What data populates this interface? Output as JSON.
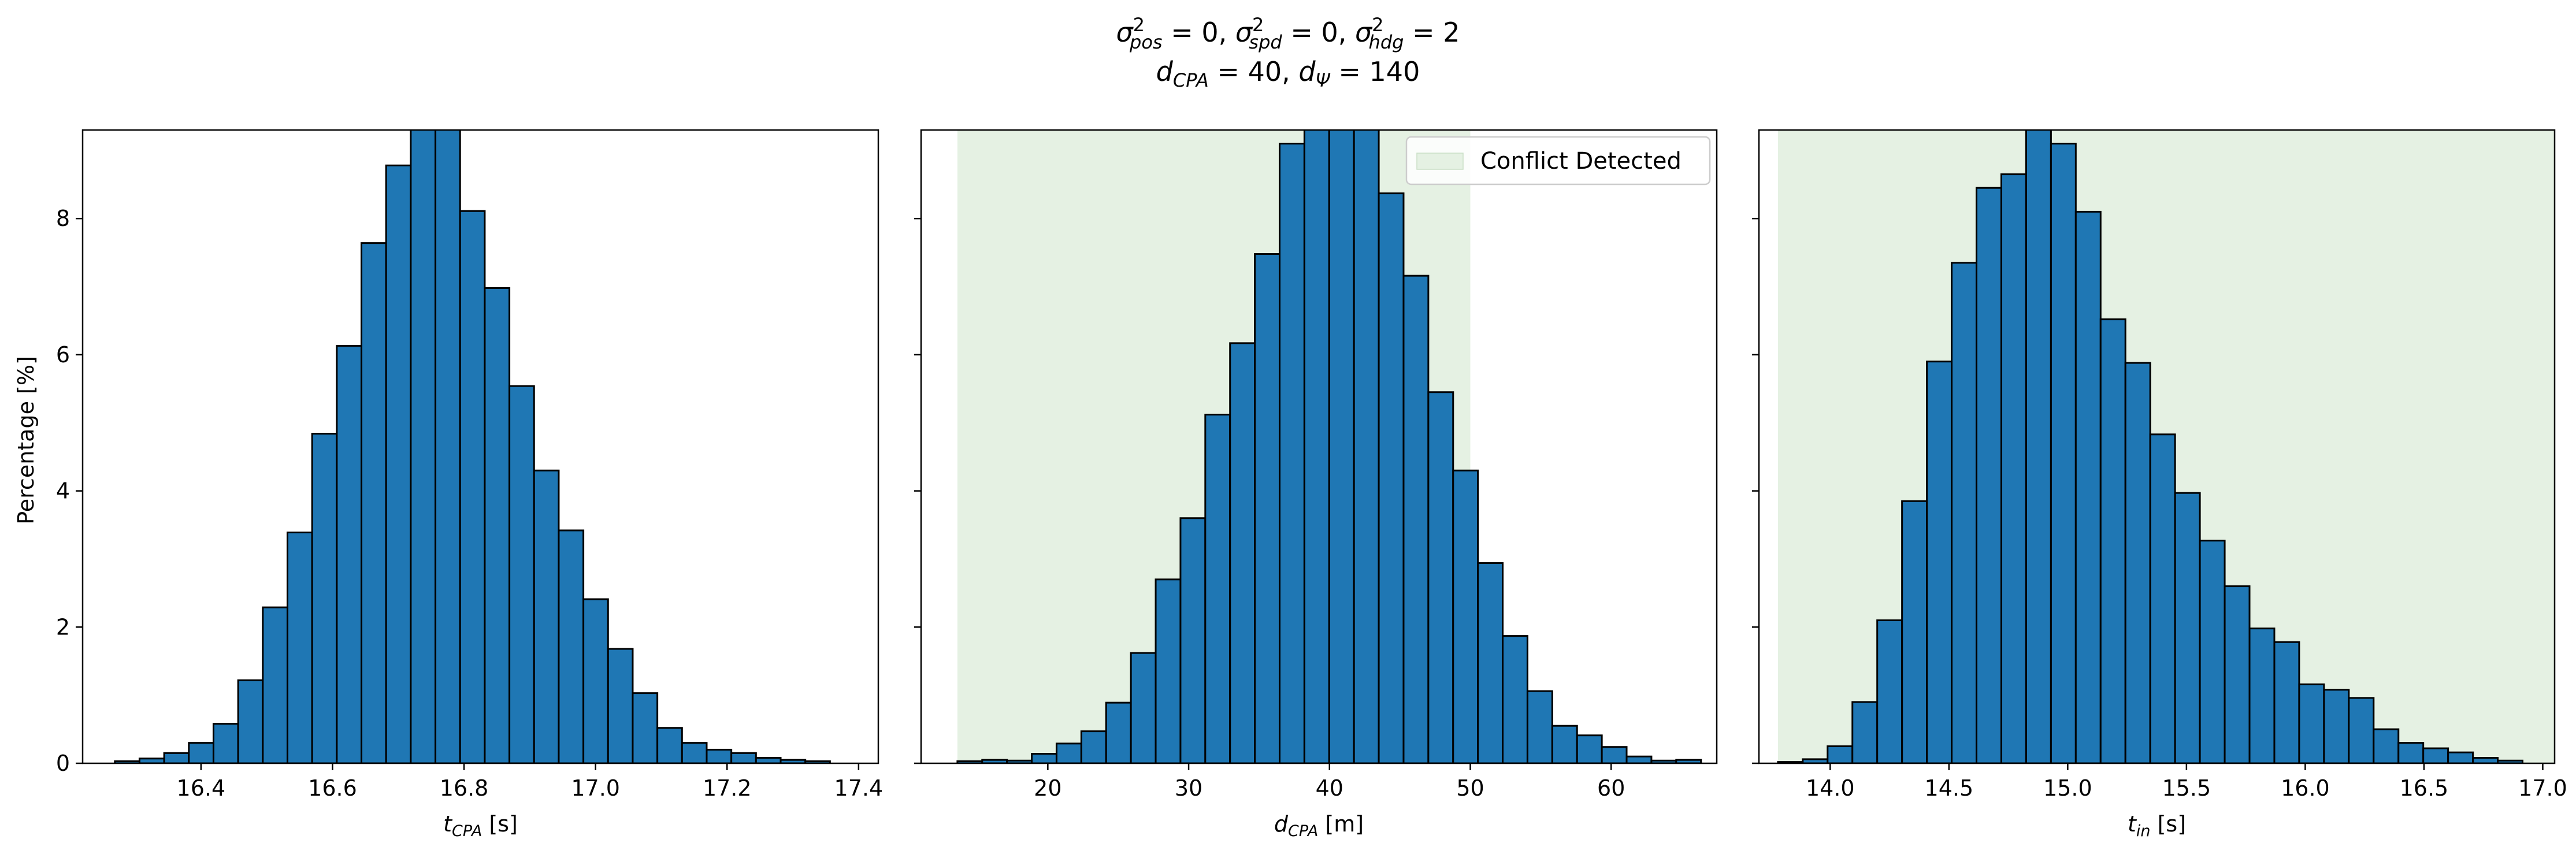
{
  "figure": {
    "title_line1": "σ²pos = 0, σ²spd = 0, σ²hdg = 2",
    "title_line1_parts": [
      {
        "sym": "σ",
        "sup": "2",
        "sub": "pos",
        "rest": " = 0, "
      },
      {
        "sym": "σ",
        "sup": "2",
        "sub": "spd",
        "rest": " = 0, "
      },
      {
        "sym": "σ",
        "sup": "2",
        "sub": "hdg",
        "rest": " = 2"
      }
    ],
    "title_line2": "dCPA = 40, dΨ = 140",
    "title_line2_parts": [
      {
        "sym": "d",
        "sup": "",
        "sub": "CPA",
        "rest": " = 40, "
      },
      {
        "sym": "d",
        "sup": "",
        "sub": "Ψ",
        "rest": " = 140"
      }
    ],
    "shared_ylabel": "Percentage [%]"
  },
  "colors": {
    "bar_fill": "#1f77b4",
    "bar_edge": "#000000",
    "conflict_region": "#e5f1e3",
    "axis": "#000000"
  },
  "chart_data": [
    {
      "type": "bar",
      "subplot": "left",
      "xlabel_sym": "t",
      "xlabel_sub": "CPA",
      "xlabel_unit": " [s]",
      "xlim": [
        16.22,
        17.43
      ],
      "ylim": [
        0,
        9.3
      ],
      "xticks": [
        16.4,
        16.6,
        16.8,
        17.0,
        17.2,
        17.4
      ],
      "xtick_labels": [
        "16.4",
        "16.6",
        "16.8",
        "17.0",
        "17.2",
        "17.4"
      ],
      "yticks": [
        0,
        2,
        4,
        6,
        8
      ],
      "ytick_labels": [
        "0",
        "2",
        "4",
        "6",
        "8"
      ],
      "bin_start": 16.269,
      "bin_width": 0.0375,
      "values": [
        0.03,
        0.07,
        0.15,
        0.3,
        0.58,
        1.22,
        2.29,
        3.39,
        4.84,
        6.13,
        7.64,
        8.78,
        9.4,
        9.4,
        8.11,
        6.98,
        5.54,
        4.3,
        3.42,
        2.41,
        1.68,
        1.03,
        0.52,
        0.3,
        0.2,
        0.15,
        0.08,
        0.05,
        0.03
      ],
      "conflict_region": null,
      "legend": null
    },
    {
      "type": "bar",
      "subplot": "middle",
      "xlabel_sym": "d",
      "xlabel_sub": "CPA",
      "xlabel_unit": " [m]",
      "xlim": [
        11.0,
        67.5
      ],
      "ylim": [
        0,
        9.3
      ],
      "xticks": [
        20,
        30,
        40,
        50,
        60
      ],
      "xtick_labels": [
        "20",
        "30",
        "40",
        "50",
        "60"
      ],
      "yticks": [
        0,
        2,
        4,
        6,
        8
      ],
      "ytick_labels": [
        "",
        "",
        "",
        "",
        ""
      ],
      "bin_start": 13.58,
      "bin_width": 1.76,
      "values": [
        0.03,
        0.05,
        0.04,
        0.14,
        0.29,
        0.47,
        0.89,
        1.62,
        2.7,
        3.6,
        5.12,
        6.17,
        7.48,
        9.1,
        9.4,
        9.4,
        9.4,
        8.37,
        7.16,
        5.45,
        4.3,
        2.94,
        1.87,
        1.06,
        0.55,
        0.41,
        0.24,
        0.1,
        0.04,
        0.05
      ],
      "conflict_region": [
        13.58,
        50.0
      ],
      "legend": {
        "label": "Conflict Detected",
        "placement": "upper right"
      }
    },
    {
      "type": "bar",
      "subplot": "right",
      "xlabel_sym": "t",
      "xlabel_sub": "in",
      "xlabel_unit": " [s]",
      "xlim": [
        13.7,
        17.05
      ],
      "ylim": [
        0,
        9.3
      ],
      "xticks": [
        14.0,
        14.5,
        15.0,
        15.5,
        16.0,
        16.5,
        17.0
      ],
      "xtick_labels": [
        "14.0",
        "14.5",
        "15.0",
        "15.5",
        "16.0",
        "16.5",
        "17.0"
      ],
      "yticks": [
        0,
        2,
        4,
        6,
        8
      ],
      "ytick_labels": [
        "",
        "",
        "",
        "",
        ""
      ],
      "bin_start": 13.78,
      "bin_width": 0.1045,
      "values": [
        0.02,
        0.06,
        0.25,
        0.9,
        2.1,
        3.85,
        5.9,
        7.35,
        8.45,
        8.65,
        9.4,
        9.1,
        8.1,
        6.52,
        5.88,
        4.83,
        3.97,
        3.27,
        2.6,
        1.98,
        1.78,
        1.16,
        1.08,
        0.96,
        0.5,
        0.3,
        0.22,
        0.16,
        0.08,
        0.04
      ],
      "conflict_region": [
        13.78,
        17.2
      ],
      "legend": null
    }
  ]
}
